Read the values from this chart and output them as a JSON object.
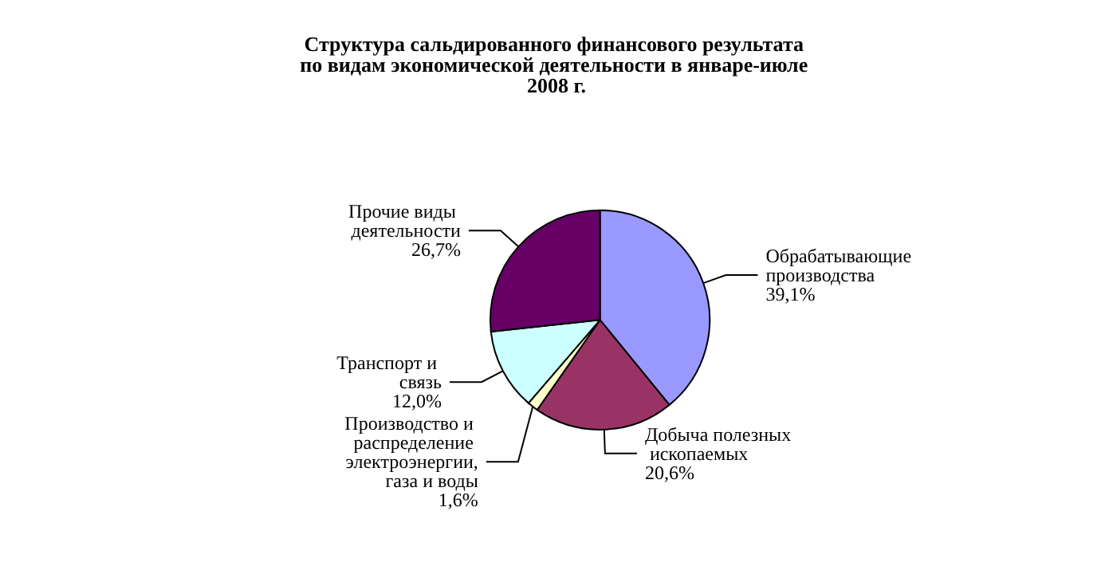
{
  "chart_data": {
    "type": "pie",
    "title": "Структура сальдированного финансового результата по видам экономической деятельности в январе-июле 2008 г.",
    "categories": [
      "Обрабатывающие производства",
      "Добыча полезных ископаемых",
      "Производство и распределение электроэнергии, газа и воды",
      "Транспорт и связь",
      "Прочие виды деятельности"
    ],
    "values": [
      39.1,
      20.6,
      1.6,
      12.0,
      26.7
    ],
    "value_labels": [
      "39,1%",
      "20,6%",
      "1,6%",
      "12,0%",
      "26,7%"
    ],
    "colors": [
      "#9999ff",
      "#993366",
      "#ffffcc",
      "#ccffff",
      "#660066"
    ],
    "legend": false
  }
}
